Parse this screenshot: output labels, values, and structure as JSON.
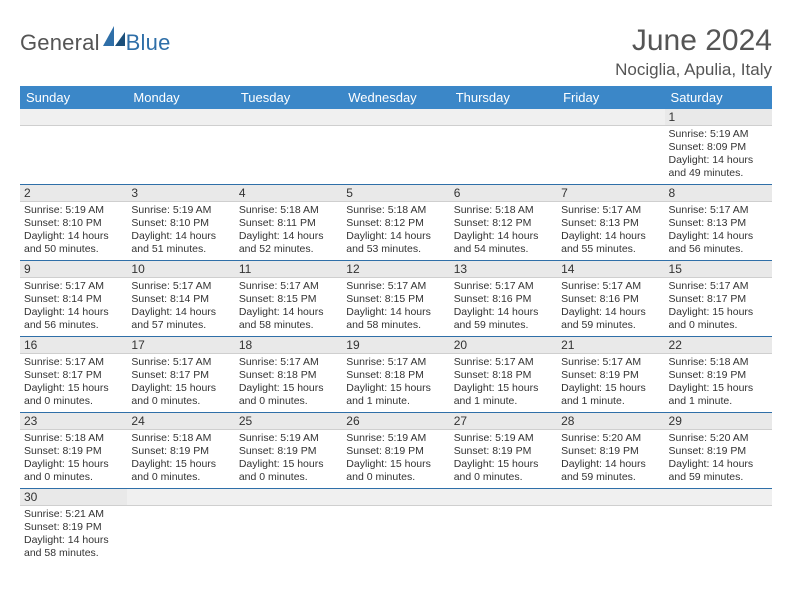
{
  "brand": {
    "part1": "General",
    "part2": "Blue",
    "icon_color1": "#2f6fa8",
    "icon_color2": "#1b4f7a"
  },
  "title": "June 2024",
  "location": "Nociglia, Apulia, Italy",
  "colors": {
    "header_bg": "#3b87c8",
    "header_text": "#ffffff",
    "daynum_bg": "#e9e9e9",
    "rule": "#2f6fa8",
    "body_text": "#333333",
    "title_text": "#555555"
  },
  "weekdays": [
    "Sunday",
    "Monday",
    "Tuesday",
    "Wednesday",
    "Thursday",
    "Friday",
    "Saturday"
  ],
  "weeks": [
    [
      null,
      null,
      null,
      null,
      null,
      null,
      {
        "n": "1",
        "sunrise": "Sunrise: 5:19 AM",
        "sunset": "Sunset: 8:09 PM",
        "daylight": "Daylight: 14 hours and 49 minutes."
      }
    ],
    [
      {
        "n": "2",
        "sunrise": "Sunrise: 5:19 AM",
        "sunset": "Sunset: 8:10 PM",
        "daylight": "Daylight: 14 hours and 50 minutes."
      },
      {
        "n": "3",
        "sunrise": "Sunrise: 5:19 AM",
        "sunset": "Sunset: 8:10 PM",
        "daylight": "Daylight: 14 hours and 51 minutes."
      },
      {
        "n": "4",
        "sunrise": "Sunrise: 5:18 AM",
        "sunset": "Sunset: 8:11 PM",
        "daylight": "Daylight: 14 hours and 52 minutes."
      },
      {
        "n": "5",
        "sunrise": "Sunrise: 5:18 AM",
        "sunset": "Sunset: 8:12 PM",
        "daylight": "Daylight: 14 hours and 53 minutes."
      },
      {
        "n": "6",
        "sunrise": "Sunrise: 5:18 AM",
        "sunset": "Sunset: 8:12 PM",
        "daylight": "Daylight: 14 hours and 54 minutes."
      },
      {
        "n": "7",
        "sunrise": "Sunrise: 5:17 AM",
        "sunset": "Sunset: 8:13 PM",
        "daylight": "Daylight: 14 hours and 55 minutes."
      },
      {
        "n": "8",
        "sunrise": "Sunrise: 5:17 AM",
        "sunset": "Sunset: 8:13 PM",
        "daylight": "Daylight: 14 hours and 56 minutes."
      }
    ],
    [
      {
        "n": "9",
        "sunrise": "Sunrise: 5:17 AM",
        "sunset": "Sunset: 8:14 PM",
        "daylight": "Daylight: 14 hours and 56 minutes."
      },
      {
        "n": "10",
        "sunrise": "Sunrise: 5:17 AM",
        "sunset": "Sunset: 8:14 PM",
        "daylight": "Daylight: 14 hours and 57 minutes."
      },
      {
        "n": "11",
        "sunrise": "Sunrise: 5:17 AM",
        "sunset": "Sunset: 8:15 PM",
        "daylight": "Daylight: 14 hours and 58 minutes."
      },
      {
        "n": "12",
        "sunrise": "Sunrise: 5:17 AM",
        "sunset": "Sunset: 8:15 PM",
        "daylight": "Daylight: 14 hours and 58 minutes."
      },
      {
        "n": "13",
        "sunrise": "Sunrise: 5:17 AM",
        "sunset": "Sunset: 8:16 PM",
        "daylight": "Daylight: 14 hours and 59 minutes."
      },
      {
        "n": "14",
        "sunrise": "Sunrise: 5:17 AM",
        "sunset": "Sunset: 8:16 PM",
        "daylight": "Daylight: 14 hours and 59 minutes."
      },
      {
        "n": "15",
        "sunrise": "Sunrise: 5:17 AM",
        "sunset": "Sunset: 8:17 PM",
        "daylight": "Daylight: 15 hours and 0 minutes."
      }
    ],
    [
      {
        "n": "16",
        "sunrise": "Sunrise: 5:17 AM",
        "sunset": "Sunset: 8:17 PM",
        "daylight": "Daylight: 15 hours and 0 minutes."
      },
      {
        "n": "17",
        "sunrise": "Sunrise: 5:17 AM",
        "sunset": "Sunset: 8:17 PM",
        "daylight": "Daylight: 15 hours and 0 minutes."
      },
      {
        "n": "18",
        "sunrise": "Sunrise: 5:17 AM",
        "sunset": "Sunset: 8:18 PM",
        "daylight": "Daylight: 15 hours and 0 minutes."
      },
      {
        "n": "19",
        "sunrise": "Sunrise: 5:17 AM",
        "sunset": "Sunset: 8:18 PM",
        "daylight": "Daylight: 15 hours and 1 minute."
      },
      {
        "n": "20",
        "sunrise": "Sunrise: 5:17 AM",
        "sunset": "Sunset: 8:18 PM",
        "daylight": "Daylight: 15 hours and 1 minute."
      },
      {
        "n": "21",
        "sunrise": "Sunrise: 5:17 AM",
        "sunset": "Sunset: 8:19 PM",
        "daylight": "Daylight: 15 hours and 1 minute."
      },
      {
        "n": "22",
        "sunrise": "Sunrise: 5:18 AM",
        "sunset": "Sunset: 8:19 PM",
        "daylight": "Daylight: 15 hours and 1 minute."
      }
    ],
    [
      {
        "n": "23",
        "sunrise": "Sunrise: 5:18 AM",
        "sunset": "Sunset: 8:19 PM",
        "daylight": "Daylight: 15 hours and 0 minutes."
      },
      {
        "n": "24",
        "sunrise": "Sunrise: 5:18 AM",
        "sunset": "Sunset: 8:19 PM",
        "daylight": "Daylight: 15 hours and 0 minutes."
      },
      {
        "n": "25",
        "sunrise": "Sunrise: 5:19 AM",
        "sunset": "Sunset: 8:19 PM",
        "daylight": "Daylight: 15 hours and 0 minutes."
      },
      {
        "n": "26",
        "sunrise": "Sunrise: 5:19 AM",
        "sunset": "Sunset: 8:19 PM",
        "daylight": "Daylight: 15 hours and 0 minutes."
      },
      {
        "n": "27",
        "sunrise": "Sunrise: 5:19 AM",
        "sunset": "Sunset: 8:19 PM",
        "daylight": "Daylight: 15 hours and 0 minutes."
      },
      {
        "n": "28",
        "sunrise": "Sunrise: 5:20 AM",
        "sunset": "Sunset: 8:19 PM",
        "daylight": "Daylight: 14 hours and 59 minutes."
      },
      {
        "n": "29",
        "sunrise": "Sunrise: 5:20 AM",
        "sunset": "Sunset: 8:19 PM",
        "daylight": "Daylight: 14 hours and 59 minutes."
      }
    ],
    [
      {
        "n": "30",
        "sunrise": "Sunrise: 5:21 AM",
        "sunset": "Sunset: 8:19 PM",
        "daylight": "Daylight: 14 hours and 58 minutes."
      },
      null,
      null,
      null,
      null,
      null,
      null
    ]
  ]
}
